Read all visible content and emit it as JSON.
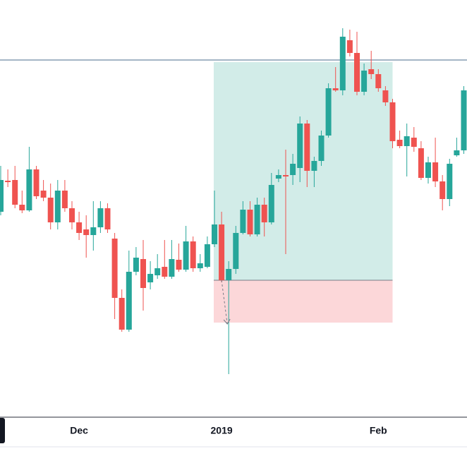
{
  "chart_data": {
    "type": "candlestick",
    "categories": [
      null,
      null,
      null,
      null,
      null,
      null,
      null,
      null,
      null,
      null,
      null,
      "Dec",
      null,
      null,
      null,
      null,
      null,
      null,
      null,
      null,
      null,
      null,
      null,
      null,
      null,
      null,
      null,
      null,
      null,
      null,
      null,
      "2019",
      null,
      null,
      null,
      null,
      null,
      null,
      null,
      null,
      null,
      null,
      null,
      null,
      null,
      null,
      null,
      null,
      null,
      null,
      null,
      null,
      null,
      "Feb",
      null,
      null,
      null,
      null,
      null,
      null,
      null,
      null,
      null,
      null,
      null,
      null
    ],
    "open": [
      300,
      344,
      345,
      310,
      302,
      360,
      330,
      320,
      285,
      330,
      305,
      285,
      275,
      267,
      278,
      305,
      262,
      178,
      133,
      215,
      233,
      200,
      210,
      222,
      208,
      232,
      218,
      258,
      220,
      222,
      254,
      282,
      203,
      219,
      270,
      303,
      268,
      310,
      285,
      347,
      352,
      352,
      362,
      425,
      358,
      372,
      408,
      475,
      472,
      543,
      525,
      470,
      502,
      495,
      472,
      455,
      402,
      393,
      405,
      390,
      348,
      370,
      343,
      318,
      380,
      387
    ],
    "high": [
      365,
      360,
      365,
      330,
      392,
      365,
      345,
      340,
      345,
      345,
      315,
      300,
      295,
      315,
      315,
      312,
      270,
      190,
      245,
      250,
      260,
      230,
      240,
      260,
      260,
      255,
      280,
      265,
      240,
      265,
      330,
      300,
      230,
      280,
      315,
      315,
      320,
      320,
      355,
      360,
      388,
      382,
      435,
      430,
      378,
      415,
      482,
      505,
      560,
      558,
      555,
      510,
      528,
      502,
      478,
      460,
      415,
      425,
      420,
      400,
      378,
      405,
      352,
      375,
      405,
      478
    ],
    "low": [
      295,
      335,
      305,
      298,
      300,
      318,
      315,
      275,
      275,
      300,
      275,
      260,
      235,
      245,
      270,
      270,
      148,
      130,
      130,
      210,
      160,
      190,
      205,
      205,
      205,
      215,
      215,
      215,
      215,
      220,
      250,
      200,
      70,
      212,
      268,
      265,
      265,
      265,
      282,
      342,
      240,
      338,
      342,
      335,
      335,
      365,
      405,
      470,
      465,
      520,
      465,
      465,
      488,
      470,
      450,
      390,
      390,
      350,
      385,
      345,
      340,
      335,
      302,
      308,
      378,
      382
    ],
    "close": [
      345,
      342,
      310,
      302,
      360,
      322,
      320,
      285,
      330,
      305,
      285,
      270,
      267,
      278,
      305,
      275,
      178,
      133,
      215,
      235,
      192,
      212,
      220,
      208,
      233,
      218,
      258,
      220,
      227,
      254,
      282,
      203,
      219,
      270,
      303,
      268,
      310,
      285,
      338,
      352,
      350,
      368,
      425,
      358,
      372,
      408,
      475,
      472,
      548,
      525,
      470,
      500,
      495,
      475,
      455,
      400,
      393,
      407,
      392,
      348,
      370,
      343,
      318,
      368,
      387,
      472
    ],
    "up_color": "#26a69a",
    "down_color": "#ef5350",
    "ylim": [
      0,
      600
    ],
    "hline": {
      "value": 515,
      "color": "#4a6d8c"
    },
    "position": {
      "start": 30,
      "end": 55,
      "entry": 203,
      "target": 512,
      "stop": 143,
      "profit_color": "#d2ece8",
      "loss_color": "#fcd7d9",
      "line_color": "#787b86"
    }
  }
}
